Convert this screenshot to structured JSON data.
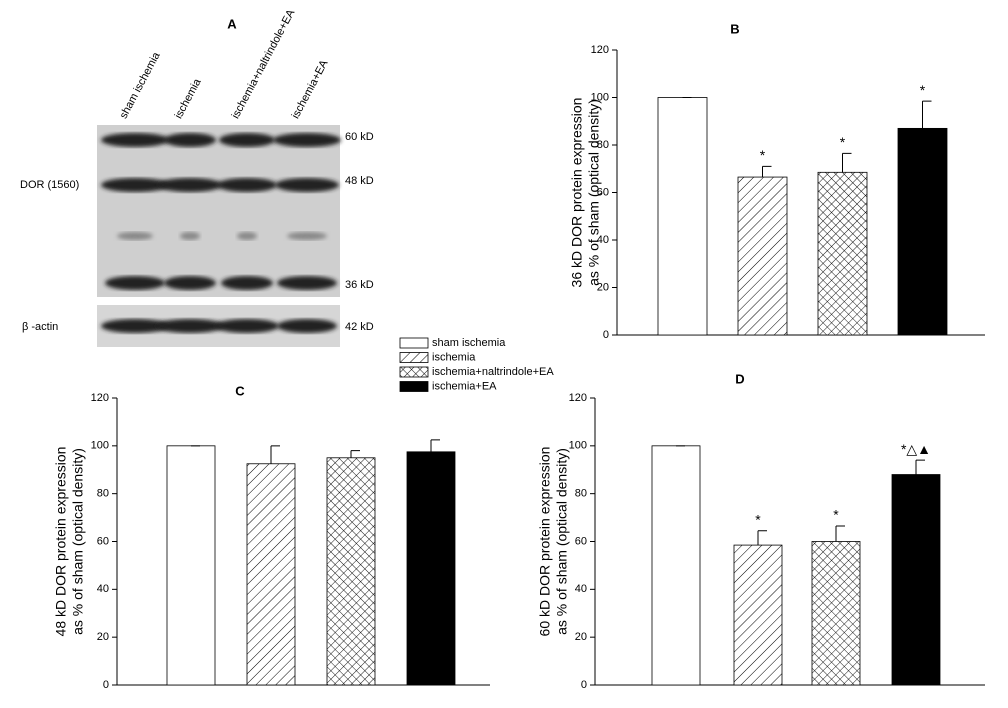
{
  "blot": {
    "label": "A",
    "lanes": [
      "sham ischemia",
      "ischemia",
      "ischemia+naltrindole+EA",
      "ischemia+EA"
    ],
    "row_label": "DOR (1560)",
    "bands": [
      "60 kD",
      "48 kD",
      "36 kD"
    ],
    "actin_label": "β -actin",
    "actin_band": "42 kD"
  },
  "legend": {
    "entries": [
      {
        "name": "sham ischemia",
        "fill": "white"
      },
      {
        "name": "ischemia",
        "fill": "hatch"
      },
      {
        "name": "ischemia+naltrindole+EA",
        "fill": "crosshatch"
      },
      {
        "name": "ischemia+EA",
        "fill": "black"
      }
    ]
  },
  "chart_data": [
    {
      "type": "bar",
      "title": "B",
      "y_label": [
        "36 kD DOR protein expression",
        "as % of sham (optical density)"
      ],
      "categories": [
        null,
        null,
        null,
        null
      ],
      "values": [
        100,
        66.5,
        68.5,
        87
      ],
      "error": [
        0,
        4.5,
        8,
        11.5
      ],
      "annotations": [
        null,
        "*",
        "*",
        "*"
      ],
      "ylim": [
        0,
        120
      ],
      "yticks": [
        0,
        20,
        40,
        60,
        80,
        100,
        120
      ]
    },
    {
      "type": "bar",
      "title": "C",
      "y_label": [
        "48 kD DOR protein expression",
        "as % of sham (optical density)"
      ],
      "categories": [
        null,
        null,
        null,
        null
      ],
      "values": [
        100,
        92.5,
        95,
        97.5
      ],
      "error": [
        0,
        7.5,
        3,
        5
      ],
      "annotations": [
        null,
        null,
        null,
        null
      ],
      "ylim": [
        0,
        120
      ],
      "yticks": [
        0,
        20,
        40,
        60,
        80,
        100,
        120
      ]
    },
    {
      "type": "bar",
      "title": "D",
      "y_label": [
        "60 kD DOR protein expression",
        "as % of sham (optical density)"
      ],
      "categories": [
        null,
        null,
        null,
        null
      ],
      "values": [
        100,
        58.5,
        60,
        88
      ],
      "error": [
        0,
        6,
        6.5,
        6
      ],
      "annotations": [
        null,
        "*",
        "*",
        "*△▲"
      ],
      "ylim": [
        0,
        120
      ],
      "yticks": [
        0,
        20,
        40,
        60,
        80,
        100,
        120
      ]
    }
  ]
}
